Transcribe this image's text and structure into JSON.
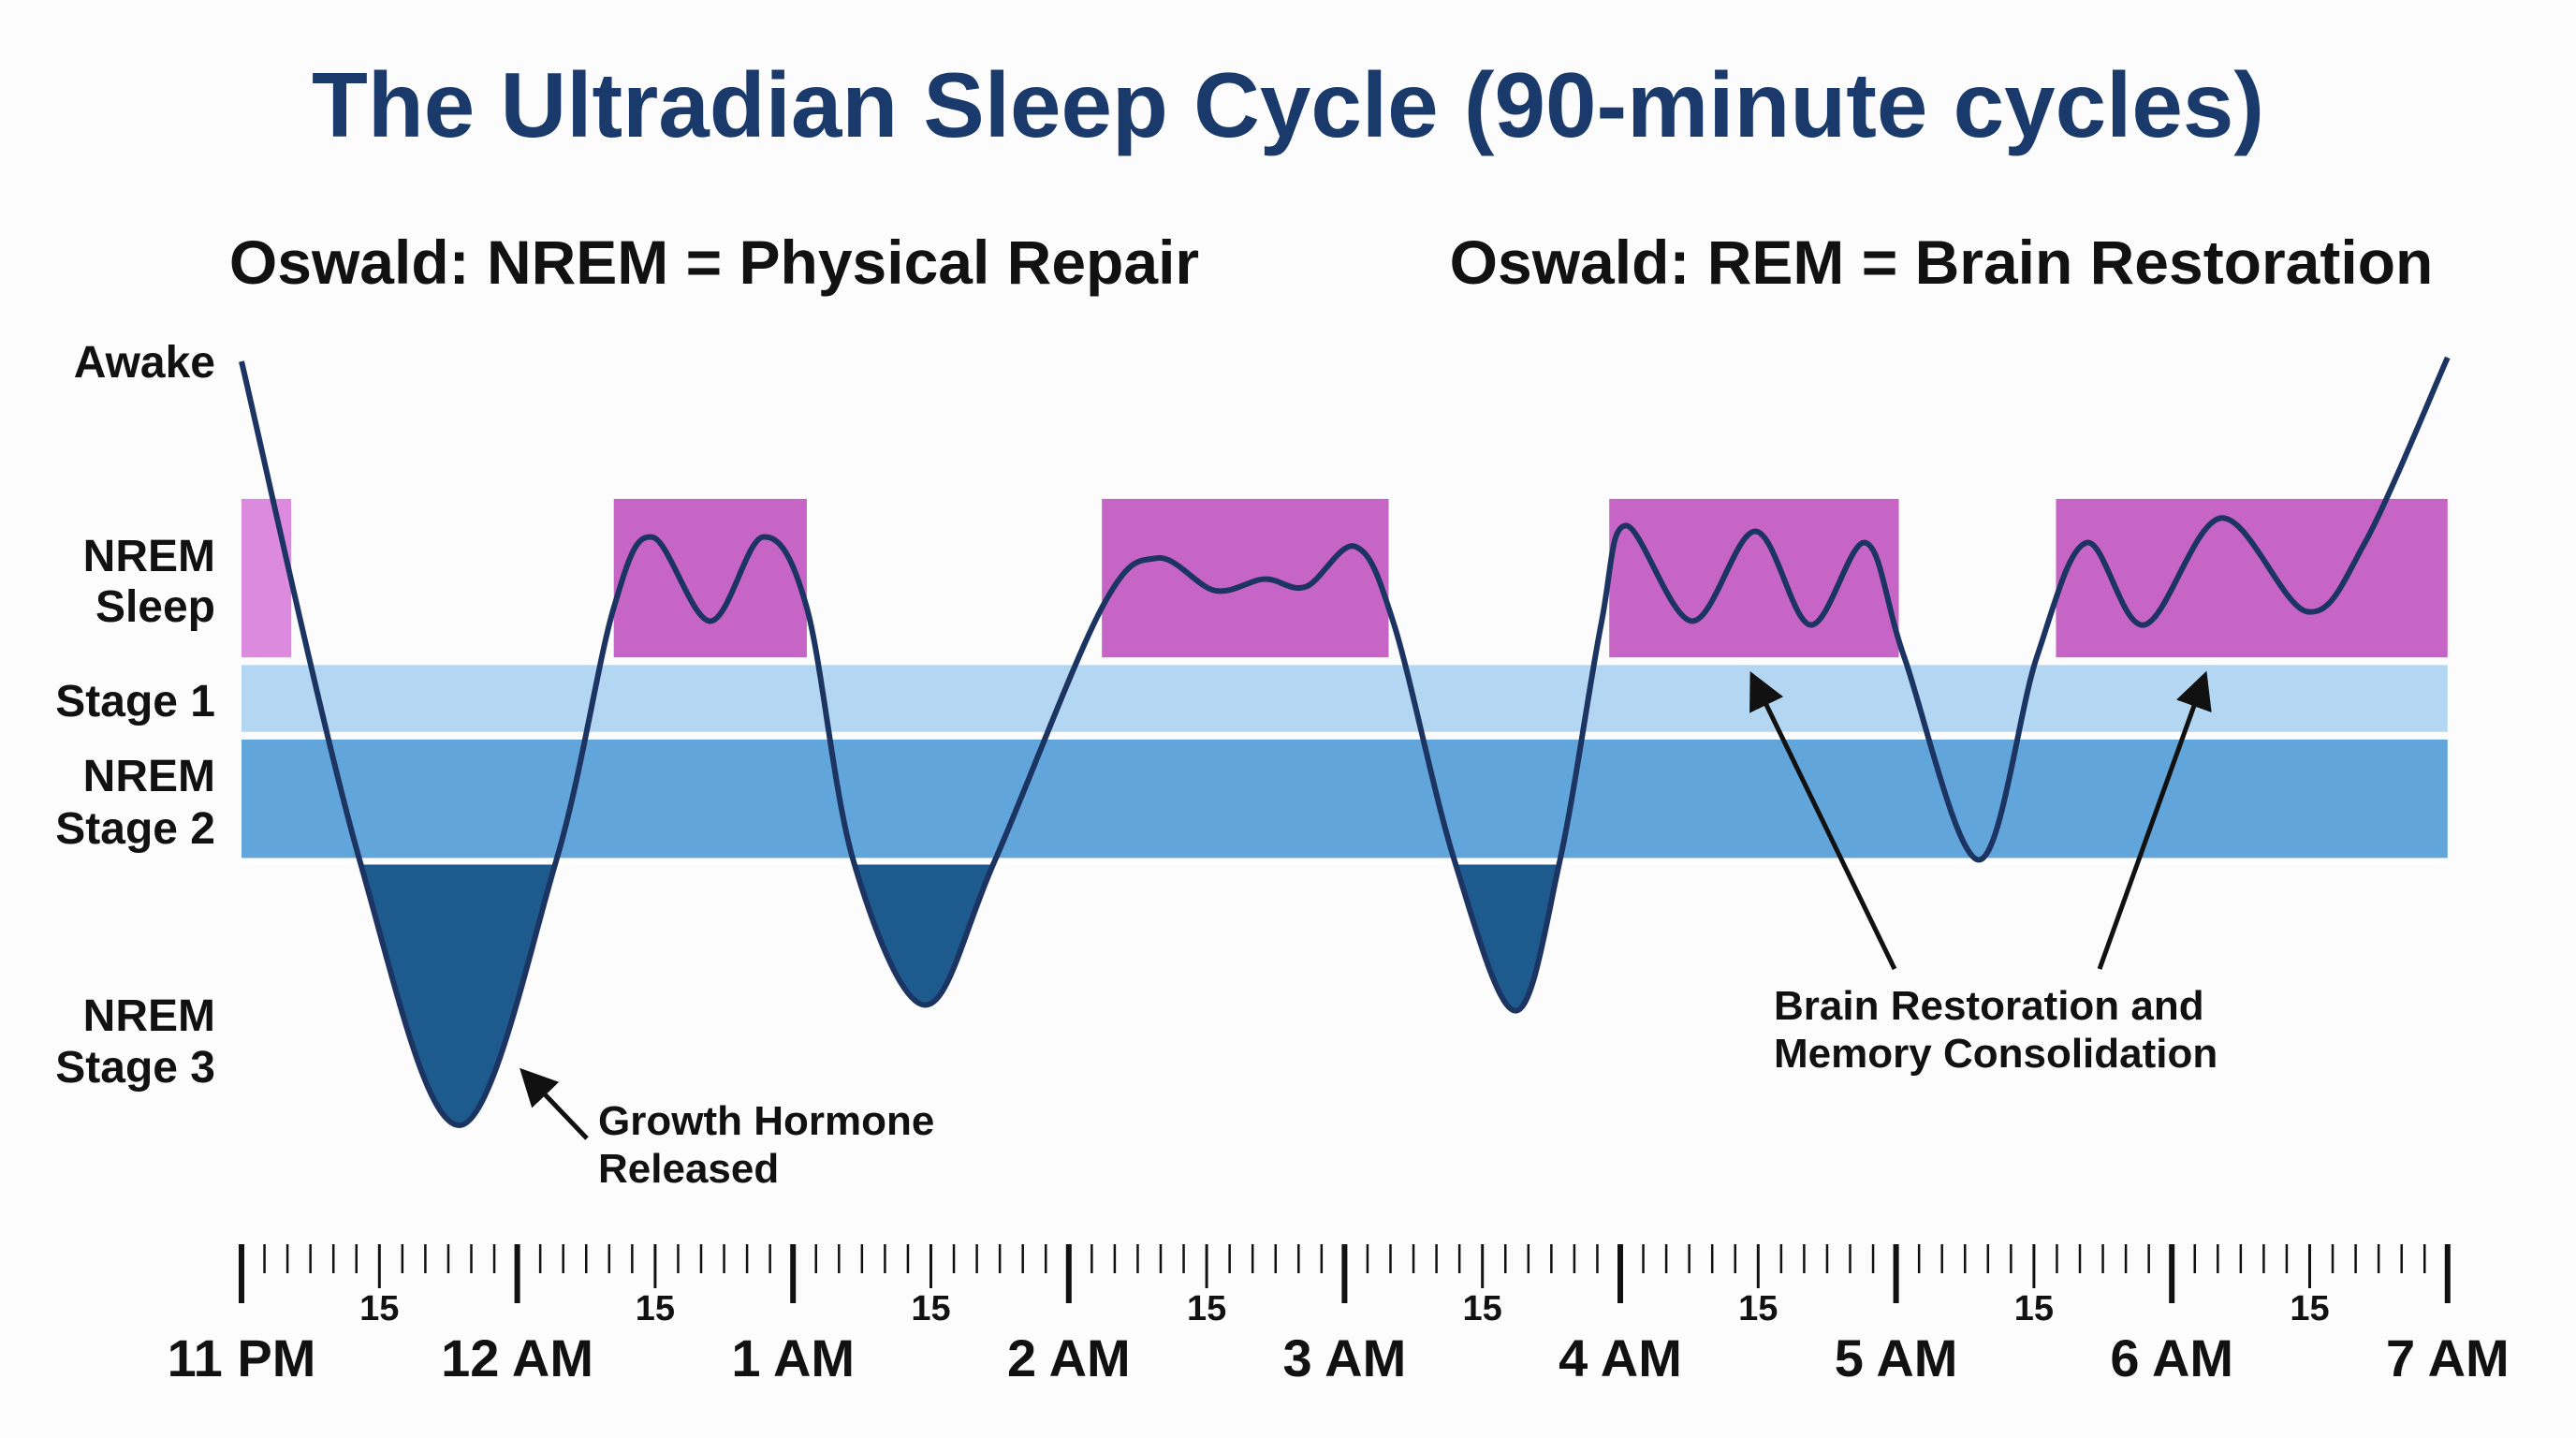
{
  "colors": {
    "title": "#1a3a6b",
    "curve": "#1c3461",
    "stage3": "#1d5a8e",
    "stage2": "#62a5da",
    "stage1": "#b3d6f2",
    "rem": "#c765c7",
    "rem_light": "#dc8ade"
  },
  "chart_data": {
    "type": "line",
    "title": "The Ultradian Sleep Cycle (90-minute cycles)",
    "subtitles": [
      "Oswald: NREM = Physical Repair",
      "Oswald: REM = Brain Restoration"
    ],
    "y_labels": {
      "awake": "Awake",
      "rem": [
        "NREM",
        "Sleep"
      ],
      "stage1": "Stage 1",
      "stage2": [
        "NREM",
        "Stage 2"
      ],
      "stage3": [
        "NREM",
        "Stage 3"
      ]
    },
    "x_unit": "hours after 11 PM",
    "y_unit": "sleep depth (0 = awake, 4 = deepest Stage 3)",
    "xlim": [
      0,
      8
    ],
    "hour_labels": [
      "11 PM",
      "12 AM",
      "1 AM",
      "2 AM",
      "3 AM",
      "4 AM",
      "5 AM",
      "6 AM",
      "7 AM"
    ],
    "minor_tick_label": "15",
    "minor_tick_minutes": 5,
    "rem_periods": [
      [
        0,
        0.18
      ],
      [
        1.35,
        2.05
      ],
      [
        3.12,
        4.16
      ],
      [
        4.96,
        6.01
      ],
      [
        6.58,
        8.0
      ]
    ],
    "points": [
      [
        0,
        0
      ],
      [
        0.43,
        2.62
      ],
      [
        0.79,
        4.0
      ],
      [
        1.14,
        2.62
      ],
      [
        1.35,
        1.29
      ],
      [
        1.49,
        0.92
      ],
      [
        1.7,
        1.36
      ],
      [
        1.89,
        0.92
      ],
      [
        2.05,
        1.29
      ],
      [
        2.22,
        2.62
      ],
      [
        2.48,
        3.37
      ],
      [
        2.73,
        2.62
      ],
      [
        3.12,
        1.29
      ],
      [
        3.32,
        1.03
      ],
      [
        3.53,
        1.2
      ],
      [
        3.71,
        1.14
      ],
      [
        3.86,
        1.18
      ],
      [
        4.04,
        0.97
      ],
      [
        4.18,
        1.38
      ],
      [
        4.4,
        2.62
      ],
      [
        4.62,
        3.4
      ],
      [
        4.78,
        2.62
      ],
      [
        4.93,
        1.38
      ],
      [
        5.02,
        0.86
      ],
      [
        5.26,
        1.36
      ],
      [
        5.49,
        0.89
      ],
      [
        5.69,
        1.38
      ],
      [
        5.89,
        0.95
      ],
      [
        6.03,
        1.55
      ],
      [
        6.3,
        2.61
      ],
      [
        6.51,
        1.55
      ],
      [
        6.69,
        0.95
      ],
      [
        6.9,
        1.38
      ],
      [
        7.18,
        0.82
      ],
      [
        7.49,
        1.31
      ],
      [
        7.7,
        0.95
      ],
      [
        8.0,
        -0.02
      ]
    ],
    "annotations": {
      "growth_hormone": [
        "Growth Hormone",
        "Released"
      ],
      "brain_restoration": [
        "Brain Restoration and",
        "Memory Consolidation"
      ]
    }
  }
}
